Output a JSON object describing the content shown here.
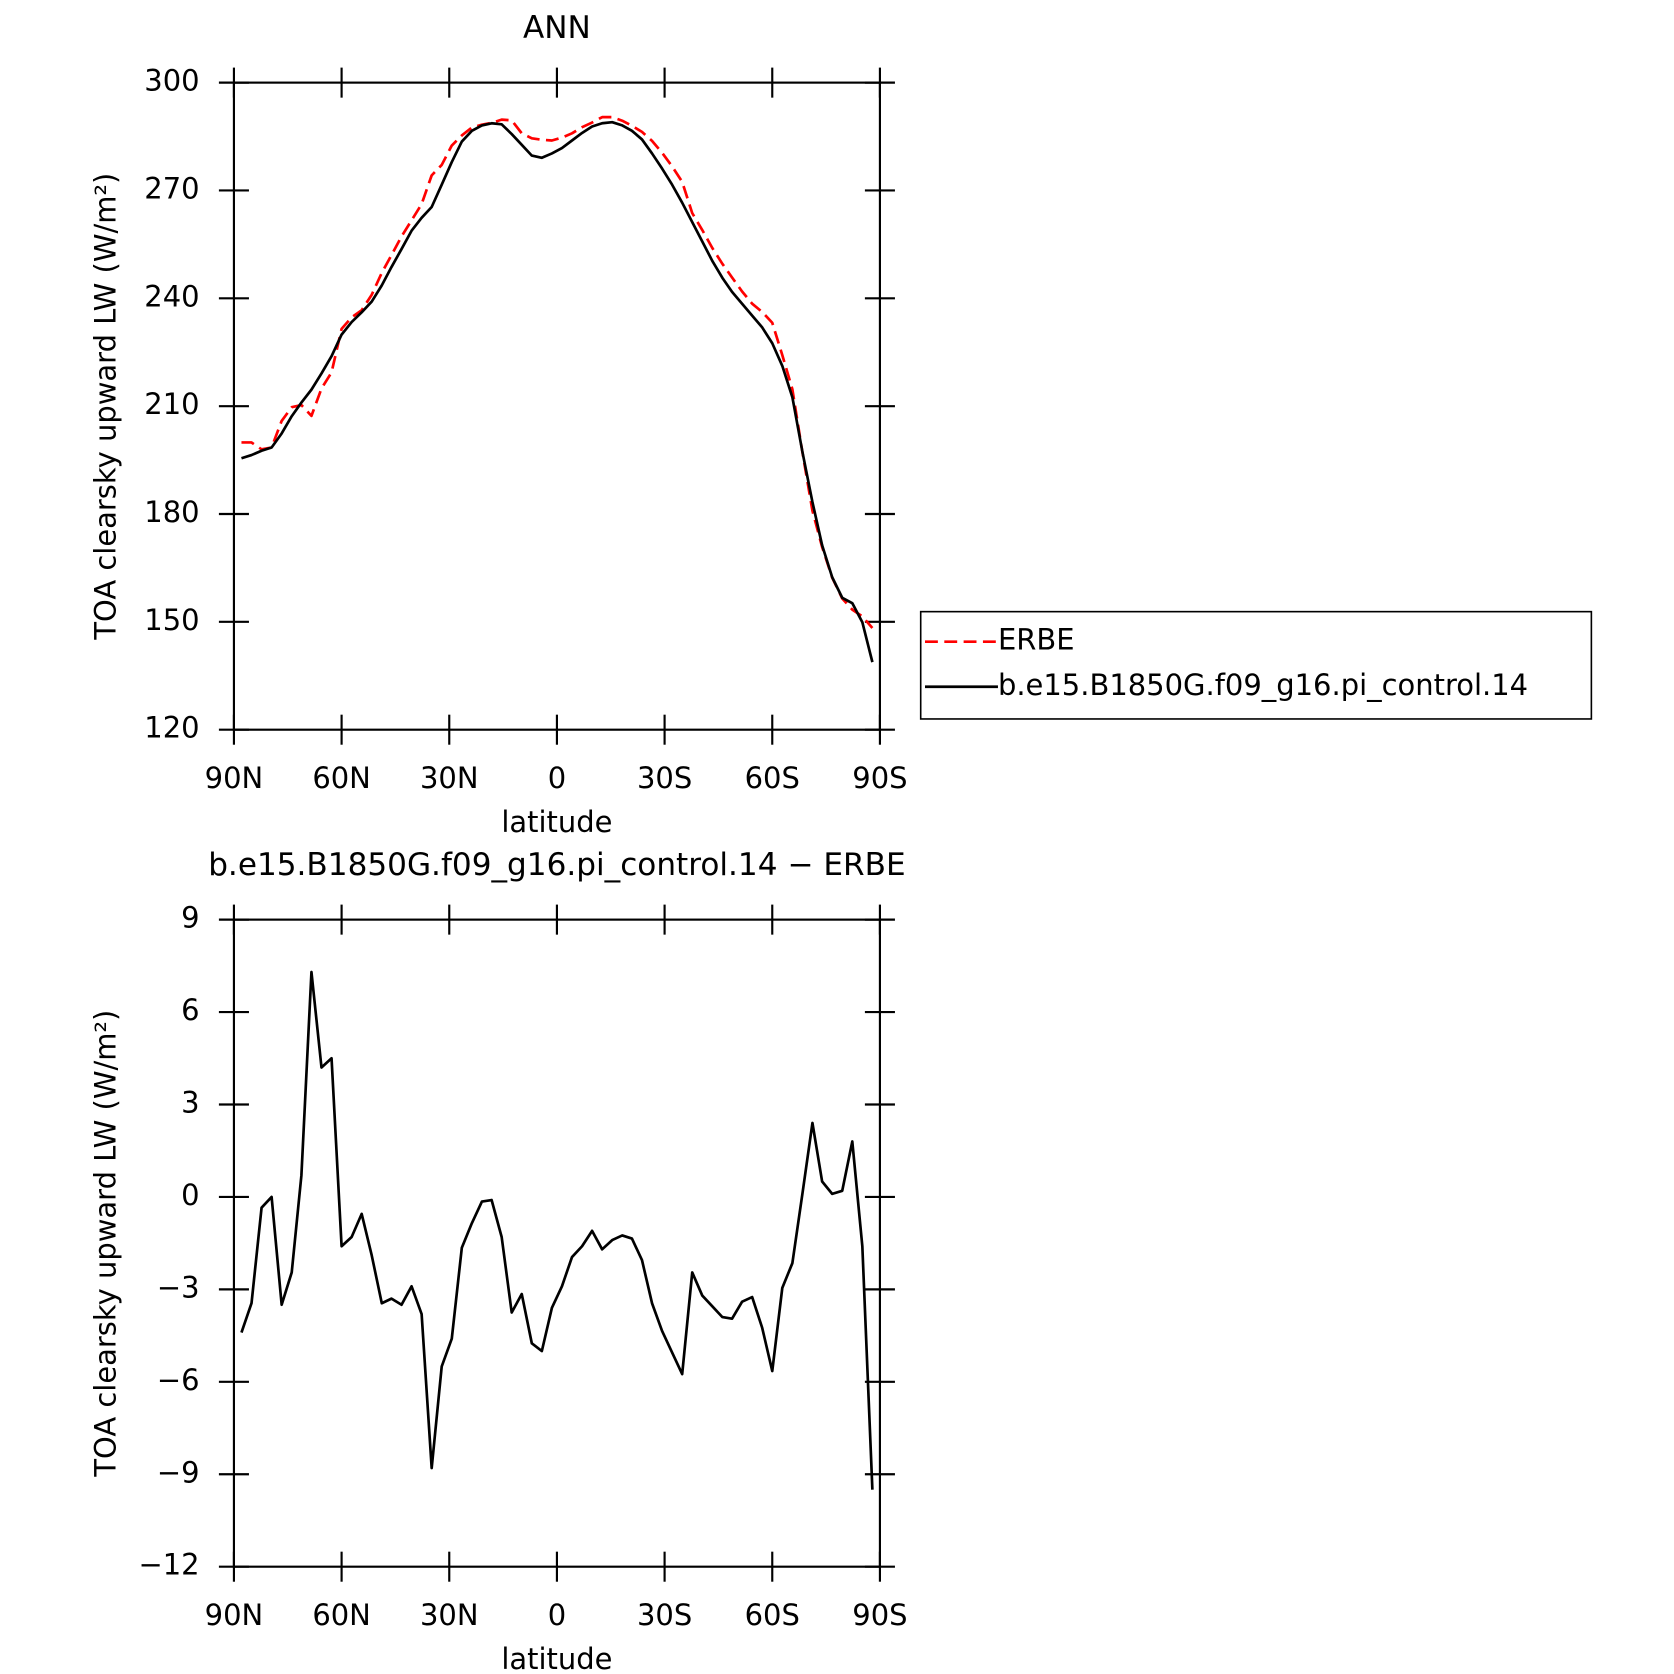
{
  "chart_data": [
    {
      "type": "line",
      "title": "ANN",
      "xlabel": "latitude",
      "ylabel": "TOA clearsky upward LW (W/m²)",
      "x": [
        87.9,
        85.1,
        82.3,
        79.5,
        76.7,
        73.9,
        71.2,
        68.4,
        65.6,
        62.8,
        60.0,
        57.2,
        54.4,
        51.6,
        48.8,
        46.1,
        43.3,
        40.5,
        37.7,
        34.9,
        32.1,
        29.3,
        26.5,
        23.7,
        20.9,
        18.2,
        15.4,
        12.6,
        9.8,
        7.0,
        4.2,
        1.4,
        -1.4,
        -4.2,
        -7.0,
        -9.8,
        -12.6,
        -15.4,
        -18.2,
        -20.9,
        -23.7,
        -26.5,
        -29.3,
        -32.1,
        -34.9,
        -37.7,
        -40.5,
        -43.3,
        -46.1,
        -48.8,
        -51.6,
        -54.4,
        -57.2,
        -60.0,
        -62.8,
        -65.6,
        -68.4,
        -71.2,
        -73.9,
        -76.7,
        -79.5,
        -82.3,
        -85.1,
        -87.9
      ],
      "series": [
        {
          "name": "ERBE",
          "color": "#ff0000",
          "line_style": "dashed",
          "values": [
            199.9,
            199.9,
            198.0,
            198.5,
            205.9,
            209.7,
            210.3,
            207.3,
            214.9,
            219.4,
            231.5,
            234.7,
            236.7,
            241.0,
            247.1,
            252.0,
            257.2,
            261.7,
            266.2,
            274.2,
            277.1,
            282.5,
            285.3,
            287.5,
            288.3,
            288.8,
            289.7,
            289.5,
            285.9,
            284.5,
            284.1,
            283.9,
            284.7,
            285.9,
            287.6,
            288.9,
            290.4,
            290.4,
            289.4,
            288.0,
            286.3,
            283.8,
            280.5,
            276.7,
            272.4,
            263.7,
            259.0,
            254.0,
            249.6,
            245.8,
            241.9,
            238.5,
            236.2,
            233.2,
            224.2,
            214.7,
            197.2,
            180.9,
            170.8,
            162.3,
            156.5,
            153.4,
            151.5,
            148.3
          ]
        },
        {
          "name": "b.e15.B1850G.f09_g16.pi_control.14",
          "color": "#000000",
          "line_style": "solid",
          "values": [
            195.5,
            196.4,
            197.6,
            198.5,
            202.4,
            207.2,
            211.0,
            214.6,
            219.1,
            223.9,
            229.9,
            233.4,
            236.1,
            239.1,
            243.6,
            248.7,
            253.7,
            258.8,
            262.4,
            265.4,
            271.6,
            277.9,
            283.6,
            286.6,
            288.1,
            288.7,
            288.4,
            285.7,
            282.7,
            279.7,
            279.1,
            280.3,
            281.8,
            283.9,
            286.0,
            287.8,
            288.7,
            289.0,
            288.1,
            286.6,
            284.2,
            280.3,
            276.1,
            271.6,
            266.6,
            261.2,
            255.8,
            250.4,
            245.7,
            241.8,
            238.5,
            235.2,
            231.9,
            227.5,
            221.2,
            212.5,
            197.3,
            183.3,
            171.3,
            162.4,
            156.7,
            155.2,
            149.9,
            138.8
          ]
        }
      ],
      "xlim": [
        90,
        -90
      ],
      "xticks": [
        {
          "value": 90,
          "label": "90N"
        },
        {
          "value": 60,
          "label": "60N"
        },
        {
          "value": 30,
          "label": "30N"
        },
        0,
        {
          "value": -30,
          "label": "30S"
        },
        {
          "value": -60,
          "label": "60S"
        },
        {
          "value": -90,
          "label": "90S"
        }
      ],
      "ylim": [
        120,
        300
      ],
      "yticks": [
        120,
        150,
        180,
        210,
        240,
        270,
        300
      ],
      "legend": "outside right"
    },
    {
      "type": "line",
      "title": "b.e15.B1850G.f09_g16.pi_control.14 − ERBE",
      "xlabel": "latitude",
      "ylabel": "TOA clearsky upward LW (W/m²)",
      "x": [
        87.9,
        85.1,
        82.3,
        79.5,
        76.7,
        73.9,
        71.2,
        68.4,
        65.6,
        62.8,
        60.0,
        57.2,
        54.4,
        51.6,
        48.8,
        46.1,
        43.3,
        40.5,
        37.7,
        34.9,
        32.1,
        29.3,
        26.5,
        23.7,
        20.9,
        18.2,
        15.4,
        12.6,
        9.8,
        7.0,
        4.2,
        1.4,
        -1.4,
        -4.2,
        -7.0,
        -9.8,
        -12.6,
        -15.4,
        -18.2,
        -20.9,
        -23.7,
        -26.5,
        -29.3,
        -32.1,
        -34.9,
        -37.7,
        -40.5,
        -43.3,
        -46.1,
        -48.8,
        -51.6,
        -54.4,
        -57.2,
        -60.0,
        -62.8,
        -65.6,
        -68.4,
        -71.2,
        -73.9,
        -76.7,
        -79.5,
        -82.3,
        -85.1,
        -87.9
      ],
      "series": [
        {
          "color": "#000000",
          "line_style": "solid",
          "values": [
            -4.4,
            -3.45,
            -0.35,
            0,
            -3.5,
            -2.45,
            0.7,
            7.3,
            4.2,
            4.5,
            -1.6,
            -1.3,
            -0.55,
            -1.9,
            -3.45,
            -3.3,
            -3.5,
            -2.9,
            -3.8,
            -8.8,
            -5.5,
            -4.6,
            -1.65,
            -0.85,
            -0.15,
            -0.1,
            -1.3,
            -3.75,
            -3.15,
            -4.75,
            -5.0,
            -3.6,
            -2.9,
            -1.95,
            -1.6,
            -1.1,
            -1.7,
            -1.4,
            -1.25,
            -1.35,
            -2.05,
            -3.45,
            -4.35,
            -5.05,
            -5.75,
            -2.45,
            -3.2,
            -3.55,
            -3.9,
            -3.95,
            -3.4,
            -3.25,
            -4.25,
            -5.65,
            -2.95,
            -2.15,
            0.1,
            2.4,
            0.5,
            0.1,
            0.2,
            1.8,
            -1.6,
            -9.5
          ]
        }
      ],
      "xlim": [
        90,
        -90
      ],
      "xticks": [
        {
          "value": 90,
          "label": "90N"
        },
        {
          "value": 60,
          "label": "60N"
        },
        {
          "value": 30,
          "label": "30N"
        },
        0,
        {
          "value": -30,
          "label": "30S"
        },
        {
          "value": -60,
          "label": "60S"
        },
        {
          "value": -90,
          "label": "90S"
        }
      ],
      "ylim": [
        -12,
        9
      ],
      "yticks": [
        {
          "value": -12,
          "label": "−12"
        },
        {
          "value": -9,
          "label": "−9"
        },
        {
          "value": -6,
          "label": "−6"
        },
        {
          "value": -3,
          "label": "−3"
        },
        0,
        3,
        6,
        9
      ]
    }
  ]
}
